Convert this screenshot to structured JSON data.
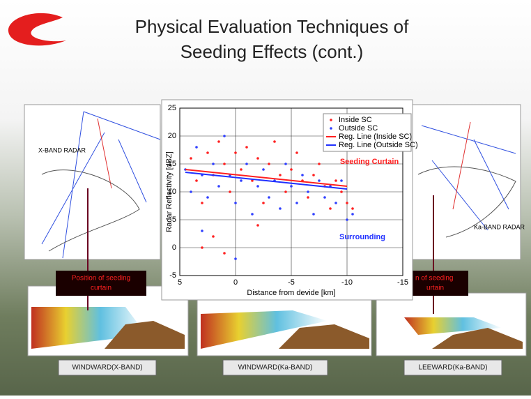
{
  "slide": {
    "title": [
      "Physical Evaluation Techniques of",
      "Seeding Effects (cont.)"
    ],
    "left_map_label": "X-BAND RADAR",
    "right_map_label": "Ka-BAND RADAR",
    "left_callout": [
      "Position of seeding",
      "curtain"
    ],
    "right_callout": [
      "n of seeding",
      "urtain"
    ],
    "captions": [
      "WINDWARD(X-BAND)",
      "WINDWARD(Ka-BAND)",
      "LEEWARD(Ka-BAND)"
    ]
  },
  "chart_data": {
    "type": "scatter",
    "xlabel": "Distance from devide [km]",
    "ylabel": "Radar Reflectivity [dBZ]",
    "xlim": [
      5,
      -15
    ],
    "xticks": [
      5,
      0,
      -5,
      -10,
      -15
    ],
    "ylim": [
      -5,
      25
    ],
    "yticks": [
      -5,
      0,
      5,
      10,
      15,
      20,
      25
    ],
    "grid": true,
    "legend": "upper right",
    "annotations": [
      {
        "text": "Seeding Curtain",
        "color": "#ff2020"
      },
      {
        "text": "Surrounding",
        "color": "#2030ff"
      }
    ],
    "series": [
      {
        "name": "Inside SC",
        "type": "scatter",
        "color": "#ff2020",
        "x": [
          4,
          3.5,
          3,
          2.5,
          2,
          1.5,
          1,
          0.5,
          0,
          -0.5,
          -1,
          -1.5,
          -2,
          -2.5,
          -3,
          -3.5,
          -4,
          -4.5,
          -5,
          -5.5,
          -6,
          -6.5,
          -7,
          -7.5,
          -8,
          -8.5,
          -9,
          -9.5,
          -10,
          -10.5,
          2,
          1,
          3,
          -2
        ],
        "values": [
          16,
          12,
          8,
          17,
          13,
          19,
          15,
          10,
          17,
          14,
          18,
          12,
          16,
          8,
          15,
          19,
          13,
          10,
          14,
          17,
          12,
          9,
          13,
          15,
          11,
          7,
          12,
          10,
          8,
          7,
          2,
          -1,
          0,
          4
        ]
      },
      {
        "name": "Outside SC",
        "type": "scatter",
        "color": "#3040ff",
        "x": [
          4.5,
          4,
          3.5,
          3,
          2.5,
          2,
          1.5,
          1,
          0.5,
          0,
          -0.5,
          -1,
          -1.5,
          -2,
          -2.5,
          -3,
          -3.5,
          -4,
          -4.5,
          -5,
          -5.5,
          -6,
          -6.5,
          -7,
          -7.5,
          -8,
          -8.5,
          -9,
          -9.5,
          -10,
          -10.5,
          3,
          0
        ],
        "values": [
          14,
          10,
          18,
          13,
          9,
          15,
          11,
          20,
          13,
          8,
          12,
          15,
          6,
          11,
          14,
          9,
          12,
          7,
          15,
          11,
          8,
          13,
          10,
          6,
          12,
          9,
          11,
          8,
          12,
          5,
          6,
          3,
          -2
        ]
      },
      {
        "name": "Reg. Line (Inside SC)",
        "type": "line",
        "color": "#ff2020",
        "x": [
          4.5,
          -10
        ],
        "values": [
          14,
          11
        ]
      },
      {
        "name": "Reg. Line (Outside SC)",
        "type": "line",
        "color": "#2030ff",
        "x": [
          4.5,
          -10
        ],
        "values": [
          13.5,
          10.5
        ]
      }
    ]
  }
}
